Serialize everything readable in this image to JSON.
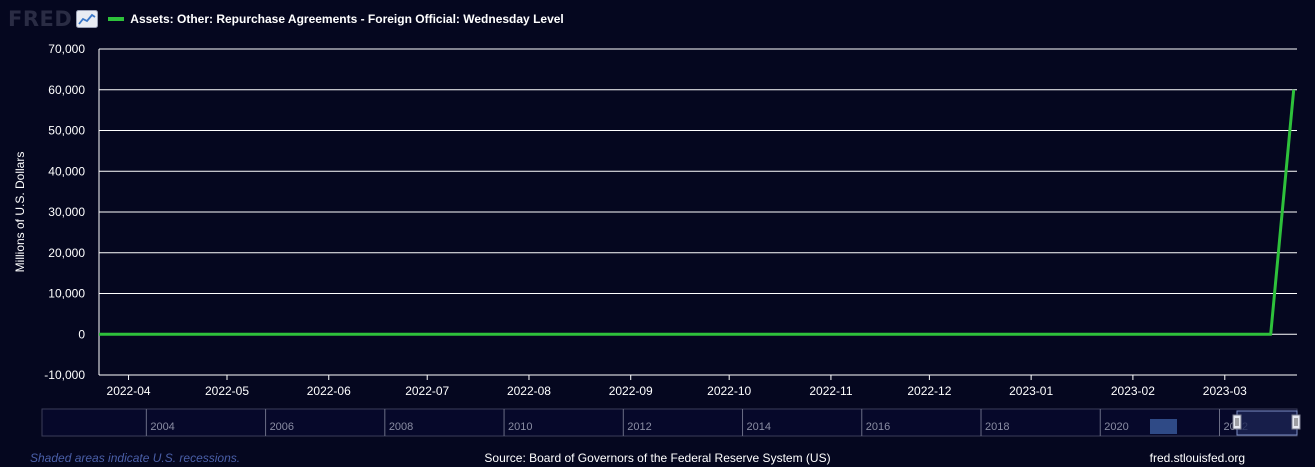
{
  "header": {
    "logo_text": "FRED",
    "logo_icon": "line-chart-icon"
  },
  "chart_data": {
    "type": "line",
    "title": "",
    "xlabel": "",
    "ylabel": "Millions of U.S. Dollars",
    "ylim": [
      -10000,
      70000
    ],
    "xlim": [
      "2022-03-23",
      "2023-03-23"
    ],
    "y_ticks": [
      -10000,
      0,
      10000,
      20000,
      30000,
      40000,
      50000,
      60000,
      70000
    ],
    "y_tick_labels": [
      "-10,000",
      "0",
      "10,000",
      "20,000",
      "30,000",
      "40,000",
      "50,000",
      "60,000",
      "70,000"
    ],
    "x_tick_labels": [
      "2022-04",
      "2022-05",
      "2022-06",
      "2022-07",
      "2022-08",
      "2022-09",
      "2022-10",
      "2022-11",
      "2022-12",
      "2023-01",
      "2023-02",
      "2023-03"
    ],
    "grid": true,
    "legend_position": "top-left",
    "series": [
      {
        "name": "Assets: Other: Repurchase Agreements - Foreign Official: Wednesday Level",
        "color": "#2ec13b",
        "x": [
          "2022-03-23",
          "2023-03-08",
          "2023-03-15",
          "2023-03-22"
        ],
        "y": [
          0,
          0,
          0,
          60000
        ]
      }
    ]
  },
  "navigator": {
    "labels": [
      "2004",
      "2006",
      "2008",
      "2010",
      "2012",
      "2014",
      "2016",
      "2018",
      "2020",
      "2022"
    ],
    "range_start": "2004",
    "range_end": "2023"
  },
  "footer": {
    "recession_note": "Shaded areas indicate U.S. recessions.",
    "source": "Source: Board of Governors of the Federal Reserve System (US)",
    "site": "fred.stlouisfed.org"
  },
  "colors": {
    "background": "#05071f",
    "series": "#2ec13b",
    "grid": "#ffffff"
  }
}
